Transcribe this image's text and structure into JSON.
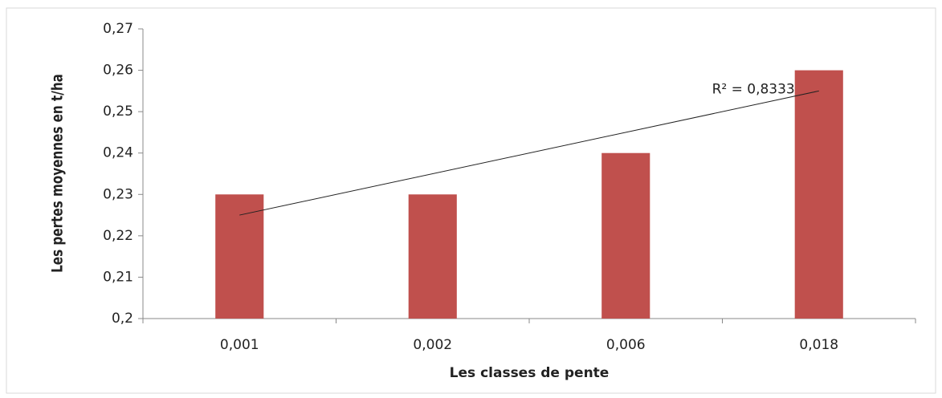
{
  "chart_data": {
    "type": "bar",
    "categories": [
      "0,001",
      "0,002",
      "0,006",
      "0,018"
    ],
    "values": [
      0.23,
      0.23,
      0.24,
      0.26
    ],
    "color": "#c0504d",
    "ylim": [
      0.2,
      0.27
    ],
    "yticks": [
      {
        "value": 0.2,
        "label": "0,2"
      },
      {
        "value": 0.21,
        "label": "0,21"
      },
      {
        "value": 0.22,
        "label": "0,22"
      },
      {
        "value": 0.23,
        "label": "0,23"
      },
      {
        "value": 0.24,
        "label": "0,24"
      },
      {
        "value": 0.25,
        "label": "0,25"
      },
      {
        "value": 0.26,
        "label": "0,26"
      },
      {
        "value": 0.27,
        "label": "0,27"
      }
    ],
    "grid": false,
    "x_label": "Les classes de pente",
    "y_label": "Les pertes moyennes en t/ha",
    "trendline": {
      "type": "linear",
      "label": "R² = 0,8333"
    }
  }
}
